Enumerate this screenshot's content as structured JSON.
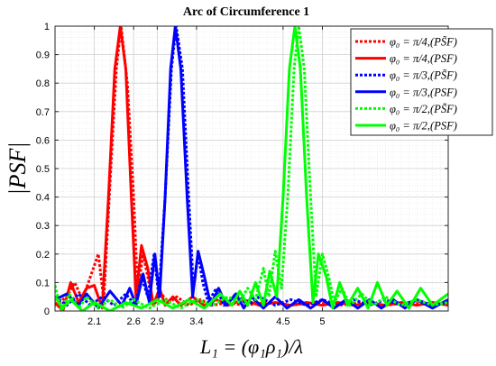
{
  "chart_data": {
    "type": "line",
    "title": "Arc of Circumference 1",
    "xlabel": "L₁ = (φ₁ρ₁)/λ",
    "ylabel": "|PSF|",
    "xlim": [
      1.6,
      6.6
    ],
    "ylim": [
      0,
      1
    ],
    "xticks": [
      2.1,
      2.6,
      2.9,
      3.4,
      4.5,
      5
    ],
    "xtick_labels": [
      "2.1",
      "2.6",
      "2.9",
      "3.4",
      "4.5",
      "5"
    ],
    "yticks": [
      0,
      0.1,
      0.2,
      0.3,
      0.4,
      0.5,
      0.6,
      0.7,
      0.8,
      0.9,
      1
    ],
    "ytick_labels": [
      "0",
      "0.1",
      "0.2",
      "0.3",
      "0.4",
      "0.5",
      "0.6",
      "0.7",
      "0.8",
      "0.9",
      "1"
    ],
    "grid": true,
    "legend_position": "top-right",
    "series": [
      {
        "name": "φ₀ = π/4,(PS̃F)",
        "color": "#ff0000",
        "style": "dotted",
        "points": [
          [
            1.6,
            0.02
          ],
          [
            1.75,
            0.05
          ],
          [
            1.85,
            0.1
          ],
          [
            1.95,
            0.04
          ],
          [
            2.05,
            0.12
          ],
          [
            2.15,
            0.2
          ],
          [
            2.22,
            0.04
          ],
          [
            2.3,
            0.45
          ],
          [
            2.38,
            0.85
          ],
          [
            2.44,
            1.0
          ],
          [
            2.52,
            0.8
          ],
          [
            2.6,
            0.4
          ],
          [
            2.65,
            0.07
          ],
          [
            2.72,
            0.2
          ],
          [
            2.78,
            0.12
          ],
          [
            2.85,
            0.02
          ],
          [
            2.95,
            0.06
          ],
          [
            3.05,
            0.03
          ],
          [
            3.15,
            0.05
          ],
          [
            3.3,
            0.02
          ],
          [
            3.45,
            0.04
          ],
          [
            3.6,
            0.02
          ],
          [
            3.8,
            0.03
          ],
          [
            4.0,
            0.02
          ],
          [
            4.3,
            0.03
          ],
          [
            4.6,
            0.02
          ],
          [
            4.9,
            0.03
          ],
          [
            5.2,
            0.02
          ],
          [
            5.5,
            0.03
          ],
          [
            5.8,
            0.02
          ],
          [
            6.1,
            0.03
          ],
          [
            6.4,
            0.02
          ],
          [
            6.6,
            0.03
          ]
        ]
      },
      {
        "name": "φ₀ = π/4,(PSF)",
        "color": "#ff0000",
        "style": "solid",
        "points": [
          [
            1.6,
            0.03
          ],
          [
            1.7,
            0.0
          ],
          [
            1.8,
            0.1
          ],
          [
            1.9,
            0.03
          ],
          [
            2.0,
            0.08
          ],
          [
            2.1,
            0.09
          ],
          [
            2.2,
            0.01
          ],
          [
            2.28,
            0.4
          ],
          [
            2.36,
            0.85
          ],
          [
            2.43,
            1.0
          ],
          [
            2.5,
            0.85
          ],
          [
            2.57,
            0.4
          ],
          [
            2.63,
            0.05
          ],
          [
            2.7,
            0.23
          ],
          [
            2.78,
            0.15
          ],
          [
            2.85,
            0.02
          ],
          [
            2.93,
            0.08
          ],
          [
            3.0,
            0.02
          ],
          [
            3.1,
            0.05
          ],
          [
            3.2,
            0.02
          ],
          [
            3.35,
            0.05
          ],
          [
            3.5,
            0.02
          ],
          [
            3.65,
            0.04
          ],
          [
            3.8,
            0.02
          ],
          [
            4.0,
            0.04
          ],
          [
            4.2,
            0.02
          ],
          [
            4.4,
            0.03
          ],
          [
            4.6,
            0.02
          ],
          [
            4.8,
            0.03
          ],
          [
            5.0,
            0.02
          ],
          [
            5.2,
            0.03
          ],
          [
            5.4,
            0.02
          ],
          [
            5.6,
            0.03
          ],
          [
            5.8,
            0.02
          ],
          [
            6.0,
            0.03
          ],
          [
            6.2,
            0.02
          ],
          [
            6.4,
            0.03
          ],
          [
            6.6,
            0.02
          ]
        ]
      },
      {
        "name": "φ₀ = π/3,(PS̃F)",
        "color": "#0000ff",
        "style": "dotted",
        "points": [
          [
            1.6,
            0.05
          ],
          [
            1.75,
            0.02
          ],
          [
            1.9,
            0.06
          ],
          [
            2.05,
            0.02
          ],
          [
            2.2,
            0.05
          ],
          [
            2.35,
            0.02
          ],
          [
            2.5,
            0.06
          ],
          [
            2.62,
            0.02
          ],
          [
            2.7,
            0.12
          ],
          [
            2.78,
            0.05
          ],
          [
            2.86,
            0.2
          ],
          [
            2.92,
            0.05
          ],
          [
            3.0,
            0.4
          ],
          [
            3.08,
            0.85
          ],
          [
            3.14,
            1.0
          ],
          [
            3.22,
            0.85
          ],
          [
            3.3,
            0.4
          ],
          [
            3.36,
            0.08
          ],
          [
            3.42,
            0.2
          ],
          [
            3.48,
            0.1
          ],
          [
            3.55,
            0.03
          ],
          [
            3.65,
            0.08
          ],
          [
            3.75,
            0.02
          ],
          [
            3.9,
            0.06
          ],
          [
            4.05,
            0.02
          ],
          [
            4.2,
            0.05
          ],
          [
            4.4,
            0.02
          ],
          [
            4.6,
            0.04
          ],
          [
            4.8,
            0.02
          ],
          [
            5.0,
            0.04
          ],
          [
            5.2,
            0.02
          ],
          [
            5.4,
            0.04
          ],
          [
            5.6,
            0.02
          ],
          [
            5.8,
            0.04
          ],
          [
            6.0,
            0.02
          ],
          [
            6.2,
            0.04
          ],
          [
            6.4,
            0.02
          ],
          [
            6.6,
            0.03
          ]
        ]
      },
      {
        "name": "φ₀ = π/3,(PSF)",
        "color": "#0000ff",
        "style": "solid",
        "points": [
          [
            1.6,
            0.04
          ],
          [
            1.75,
            0.06
          ],
          [
            1.9,
            0.02
          ],
          [
            2.0,
            0.06
          ],
          [
            2.15,
            0.01
          ],
          [
            2.3,
            0.07
          ],
          [
            2.45,
            0.02
          ],
          [
            2.55,
            0.08
          ],
          [
            2.63,
            0.02
          ],
          [
            2.72,
            0.13
          ],
          [
            2.8,
            0.03
          ],
          [
            2.87,
            0.2
          ],
          [
            2.93,
            0.05
          ],
          [
            3.0,
            0.4
          ],
          [
            3.07,
            0.85
          ],
          [
            3.13,
            1.0
          ],
          [
            3.2,
            0.85
          ],
          [
            3.28,
            0.4
          ],
          [
            3.35,
            0.05
          ],
          [
            3.42,
            0.21
          ],
          [
            3.5,
            0.12
          ],
          [
            3.58,
            0.02
          ],
          [
            3.68,
            0.08
          ],
          [
            3.78,
            0.02
          ],
          [
            3.9,
            0.06
          ],
          [
            4.0,
            0.01
          ],
          [
            4.1,
            0.05
          ],
          [
            4.25,
            0.01
          ],
          [
            4.4,
            0.05
          ],
          [
            4.55,
            0.01
          ],
          [
            4.7,
            0.04
          ],
          [
            4.85,
            0.01
          ],
          [
            5.0,
            0.04
          ],
          [
            5.15,
            0.01
          ],
          [
            5.3,
            0.04
          ],
          [
            5.45,
            0.01
          ],
          [
            5.6,
            0.04
          ],
          [
            5.75,
            0.01
          ],
          [
            5.9,
            0.04
          ],
          [
            6.05,
            0.01
          ],
          [
            6.2,
            0.04
          ],
          [
            6.4,
            0.01
          ],
          [
            6.6,
            0.04
          ]
        ]
      },
      {
        "name": "φ₀ = π/2,(PS̃F)",
        "color": "#00ff00",
        "style": "dotted",
        "points": [
          [
            1.6,
            0.09
          ],
          [
            1.68,
            0.0
          ],
          [
            1.78,
            0.06
          ],
          [
            1.9,
            0.01
          ],
          [
            2.0,
            0.05
          ],
          [
            2.15,
            0.01
          ],
          [
            2.3,
            0.04
          ],
          [
            2.45,
            0.01
          ],
          [
            2.6,
            0.04
          ],
          [
            2.8,
            0.01
          ],
          [
            3.0,
            0.04
          ],
          [
            3.2,
            0.01
          ],
          [
            3.4,
            0.04
          ],
          [
            3.6,
            0.02
          ],
          [
            3.8,
            0.05
          ],
          [
            3.95,
            0.03
          ],
          [
            4.05,
            0.08
          ],
          [
            4.15,
            0.04
          ],
          [
            4.25,
            0.15
          ],
          [
            4.32,
            0.05
          ],
          [
            4.4,
            0.21
          ],
          [
            4.48,
            0.08
          ],
          [
            4.56,
            0.4
          ],
          [
            4.64,
            0.85
          ],
          [
            4.7,
            1.0
          ],
          [
            4.77,
            0.85
          ],
          [
            4.85,
            0.4
          ],
          [
            4.92,
            0.05
          ],
          [
            5.0,
            0.2
          ],
          [
            5.08,
            0.12
          ],
          [
            5.15,
            0.03
          ],
          [
            5.25,
            0.08
          ],
          [
            5.35,
            0.02
          ],
          [
            5.5,
            0.06
          ],
          [
            5.65,
            0.02
          ],
          [
            5.8,
            0.05
          ],
          [
            6.0,
            0.02
          ],
          [
            6.2,
            0.04
          ],
          [
            6.4,
            0.02
          ],
          [
            6.6,
            0.03
          ]
        ]
      },
      {
        "name": "φ₀ = π/2,(PSF)",
        "color": "#00ff00",
        "style": "solid",
        "points": [
          [
            1.6,
            0.05
          ],
          [
            1.7,
            0.01
          ],
          [
            1.8,
            0.04
          ],
          [
            1.95,
            0.0
          ],
          [
            2.1,
            0.03
          ],
          [
            2.3,
            0.0
          ],
          [
            2.5,
            0.03
          ],
          [
            2.7,
            0.01
          ],
          [
            2.9,
            0.04
          ],
          [
            3.1,
            0.01
          ],
          [
            3.3,
            0.04
          ],
          [
            3.5,
            0.01
          ],
          [
            3.7,
            0.06
          ],
          [
            3.85,
            0.02
          ],
          [
            3.95,
            0.07
          ],
          [
            4.05,
            0.02
          ],
          [
            4.15,
            0.1
          ],
          [
            4.25,
            0.02
          ],
          [
            4.33,
            0.14
          ],
          [
            4.42,
            0.05
          ],
          [
            4.5,
            0.4
          ],
          [
            4.58,
            0.85
          ],
          [
            4.65,
            1.0
          ],
          [
            4.72,
            0.85
          ],
          [
            4.8,
            0.4
          ],
          [
            4.88,
            0.03
          ],
          [
            4.95,
            0.2
          ],
          [
            5.05,
            0.12
          ],
          [
            5.13,
            0.01
          ],
          [
            5.22,
            0.1
          ],
          [
            5.32,
            0.02
          ],
          [
            5.45,
            0.08
          ],
          [
            5.58,
            0.01
          ],
          [
            5.7,
            0.1
          ],
          [
            5.82,
            0.02
          ],
          [
            5.95,
            0.07
          ],
          [
            6.1,
            0.01
          ],
          [
            6.25,
            0.08
          ],
          [
            6.4,
            0.02
          ],
          [
            6.6,
            0.06
          ]
        ]
      }
    ]
  }
}
